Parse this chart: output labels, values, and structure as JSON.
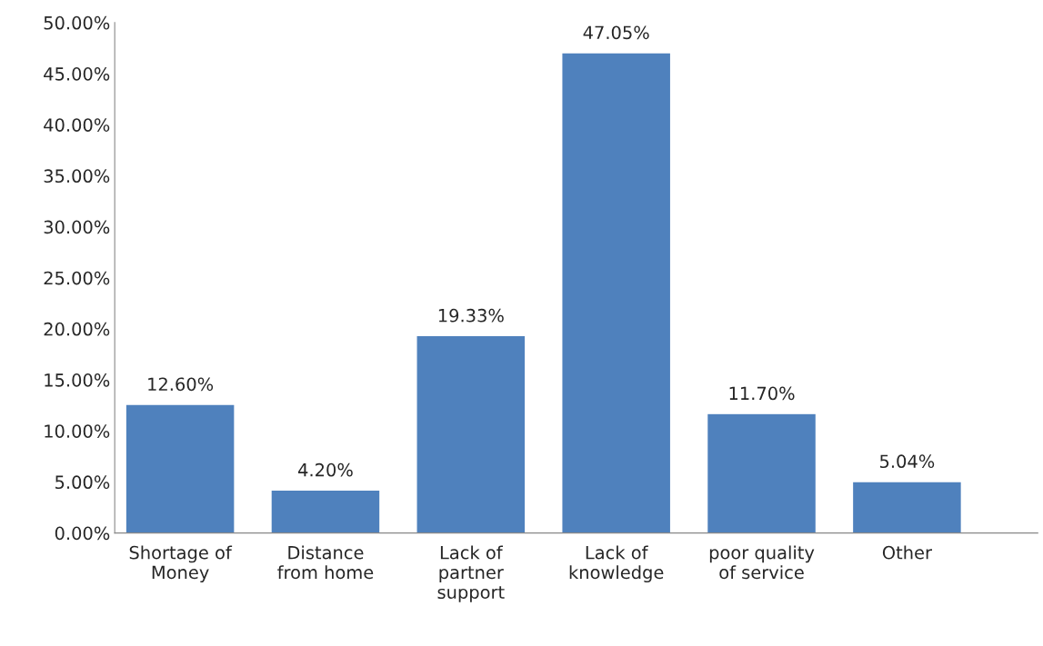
{
  "chart_data": {
    "type": "bar",
    "categories": [
      "Shortage of\nMoney",
      "Distance\nfrom home",
      "Lack of\npartner\nsupport",
      "Lack of\nknowledge",
      "poor quality\nof service",
      "Other"
    ],
    "values": [
      12.6,
      4.2,
      19.33,
      47.05,
      11.7,
      5.04
    ],
    "value_labels": [
      "12.60%",
      "4.20%",
      "19.33%",
      "47.05%",
      "11.70%",
      "5.04%"
    ],
    "color": "#4f81bd",
    "ylim": [
      0,
      50
    ],
    "yticks": [
      {
        "value": 0,
        "label": "0.00%"
      },
      {
        "value": 5,
        "label": "5.00%"
      },
      {
        "value": 10,
        "label": "10.00%"
      },
      {
        "value": 15,
        "label": "15.00%"
      },
      {
        "value": 20,
        "label": "20.00%"
      },
      {
        "value": 25,
        "label": "25.00%"
      },
      {
        "value": 30,
        "label": "30.00%"
      },
      {
        "value": 35,
        "label": "35.00%"
      },
      {
        "value": 40,
        "label": "40.00%"
      },
      {
        "value": 45,
        "label": "45.00%"
      },
      {
        "value": 50,
        "label": "50.00%"
      }
    ],
    "grid": false,
    "legend": false
  }
}
